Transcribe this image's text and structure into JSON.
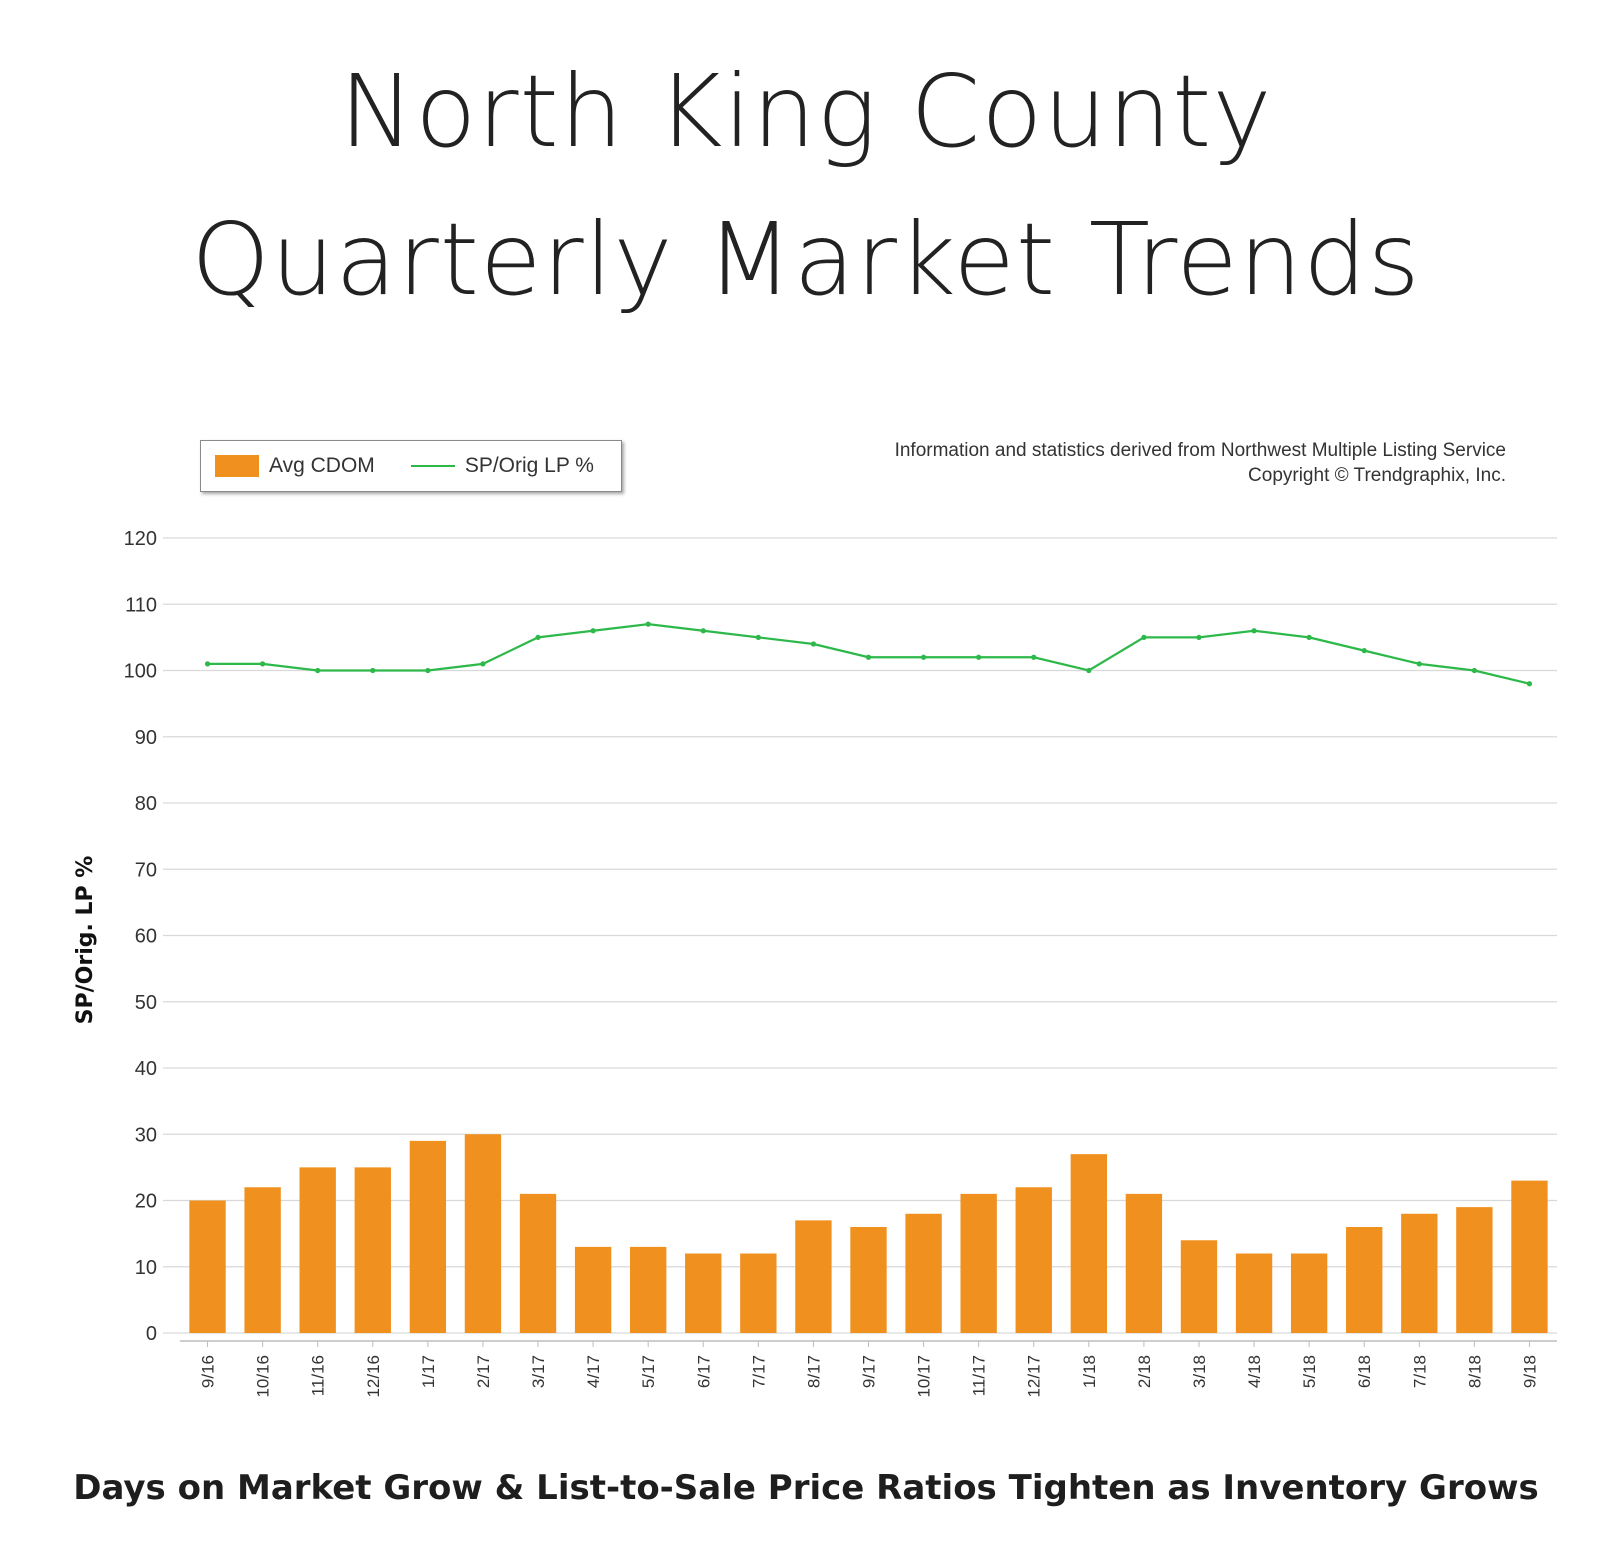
{
  "header": {
    "title_line1": "North King County",
    "title_line2": "Quarterly Market Trends"
  },
  "legend": {
    "bar_label": "Avg CDOM",
    "line_label": "SP/Orig LP %"
  },
  "source": {
    "line1": "Information and statistics derived from Northwest Multiple Listing Service",
    "line2": "Copyright © Trendgraphix, Inc."
  },
  "subtitle": "Days on Market Grow & List-to-Sale Price Ratios Tighten as Inventory Grows",
  "colors": {
    "bar": "#f0901e",
    "line": "#2db84a",
    "grid": "#d9d9d9"
  },
  "chart_data": {
    "type": "bar",
    "ylabel": "SP/Orig. LP %",
    "ylim": [
      0,
      120
    ],
    "yticks": [
      0,
      10,
      20,
      30,
      40,
      50,
      60,
      70,
      80,
      90,
      100,
      110,
      120
    ],
    "grid": true,
    "legend_position": "top-left",
    "categories": [
      "9/16",
      "10/16",
      "11/16",
      "12/16",
      "1/17",
      "2/17",
      "3/17",
      "4/17",
      "5/17",
      "6/17",
      "7/17",
      "8/17",
      "9/17",
      "10/17",
      "11/17",
      "12/17",
      "1/18",
      "2/18",
      "3/18",
      "4/18",
      "5/18",
      "6/18",
      "7/18",
      "8/18",
      "9/18"
    ],
    "series": [
      {
        "name": "Avg CDOM",
        "type": "bar",
        "values": [
          20,
          22,
          25,
          25,
          29,
          30,
          21,
          13,
          13,
          12,
          12,
          17,
          16,
          18,
          21,
          22,
          27,
          21,
          14,
          12,
          12,
          16,
          18,
          19,
          23
        ]
      },
      {
        "name": "SP/Orig LP %",
        "type": "line",
        "values": [
          101,
          101,
          100,
          100,
          100,
          101,
          105,
          106,
          107,
          106,
          105,
          104,
          102,
          102,
          102,
          102,
          100,
          105,
          105,
          106,
          105,
          103,
          101,
          100,
          98
        ]
      }
    ]
  }
}
